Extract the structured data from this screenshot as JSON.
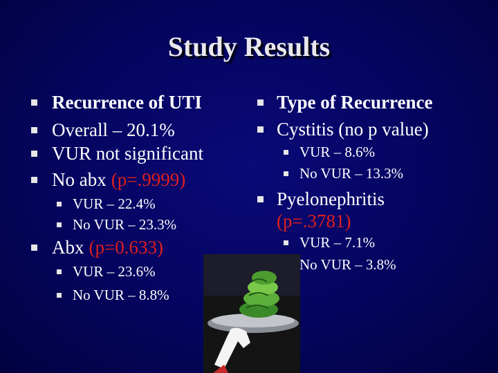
{
  "title": "Study Results",
  "columns": [
    {
      "items": [
        {
          "text": "Recurrence of UTI"
        },
        {
          "text": "Overall – 20.1%"
        },
        {
          "text": "VUR not significant"
        },
        {
          "text": "No abx",
          "note": "(p=.9999)",
          "children": [
            "VUR – 22.4%",
            "No VUR – 23.3%"
          ]
        },
        {
          "text": "Abx",
          "note": "(p=0.633)",
          "children": [
            "VUR – 23.6%",
            "No VUR – 8.8%"
          ]
        }
      ]
    },
    {
      "items": [
        {
          "text": "Type of Recurrence"
        },
        {
          "text": "Cystitis (no p value)",
          "children": [
            "VUR – 8.6%",
            "No VUR – 13.3%"
          ]
        },
        {
          "text": "Pyelonephritis",
          "note": "(p=.3781)",
          "children": [
            "VUR – 7.1%",
            "No VUR – 3.8%"
          ]
        }
      ]
    }
  ]
}
